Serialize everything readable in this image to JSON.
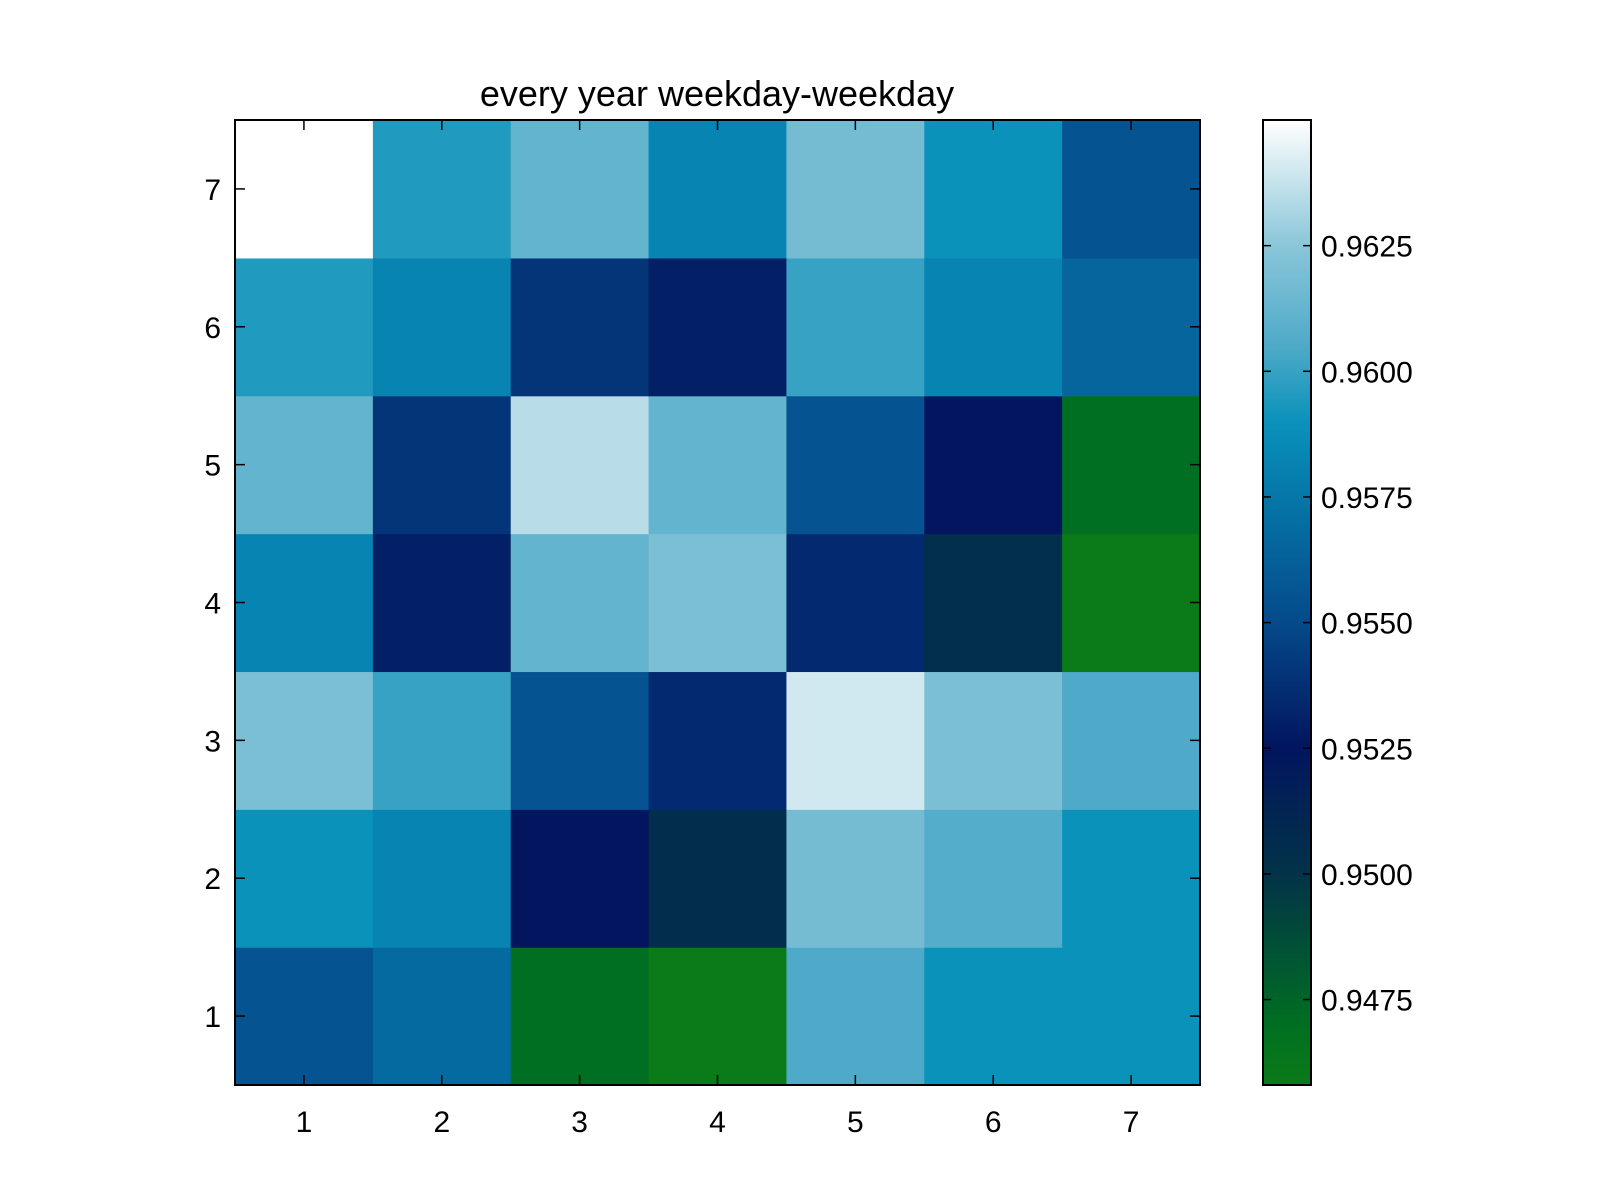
{
  "chart_data": {
    "type": "heatmap",
    "title": "every year weekday-weekday",
    "xlabel": "",
    "ylabel": "",
    "x_categories": [
      "1",
      "2",
      "3",
      "4",
      "5",
      "6",
      "7"
    ],
    "y_categories": [
      "1",
      "2",
      "3",
      "4",
      "5",
      "6",
      "7"
    ],
    "rows_order": "bottom-to-top",
    "values": [
      [
        0.9555,
        0.9568,
        0.947,
        0.9458,
        0.9605,
        0.959,
        0.959
      ],
      [
        0.959,
        0.9582,
        0.9525,
        0.9505,
        0.9618,
        0.9607,
        0.959
      ],
      [
        0.962,
        0.96,
        0.9555,
        0.9535,
        0.964,
        0.962,
        0.9605
      ],
      [
        0.9582,
        0.953,
        0.9612,
        0.962,
        0.9535,
        0.9503,
        0.9458
      ],
      [
        0.9612,
        0.954,
        0.9635,
        0.9612,
        0.9555,
        0.9525,
        0.947
      ],
      [
        0.9595,
        0.9582,
        0.954,
        0.953,
        0.96,
        0.9582,
        0.9565
      ],
      [
        0.965,
        0.9595,
        0.9612,
        0.9582,
        0.9618,
        0.959,
        0.9555
      ]
    ],
    "colorbar": {
      "min": 0.9458,
      "max": 0.965,
      "ticks": [
        0.9475,
        0.95,
        0.9525,
        0.955,
        0.9575,
        0.96,
        0.9625
      ],
      "tick_labels": [
        "0.9475",
        "0.9500",
        "0.9525",
        "0.9550",
        "0.9575",
        "0.9600",
        "0.9625"
      ]
    },
    "colormap": [
      {
        "v": 0.9458,
        "color": "#0b7a18"
      },
      {
        "v": 0.947,
        "color": "#006f22"
      },
      {
        "v": 0.95,
        "color": "#023348"
      },
      {
        "v": 0.9525,
        "color": "#02155e"
      },
      {
        "v": 0.955,
        "color": "#054a8a"
      },
      {
        "v": 0.9575,
        "color": "#0577a8"
      },
      {
        "v": 0.959,
        "color": "#0a92bb"
      },
      {
        "v": 0.9605,
        "color": "#4eaac8"
      },
      {
        "v": 0.9625,
        "color": "#8ac6d9"
      },
      {
        "v": 0.965,
        "color": "#ffffff"
      }
    ],
    "grid": false,
    "legend": "colorbar-right"
  }
}
